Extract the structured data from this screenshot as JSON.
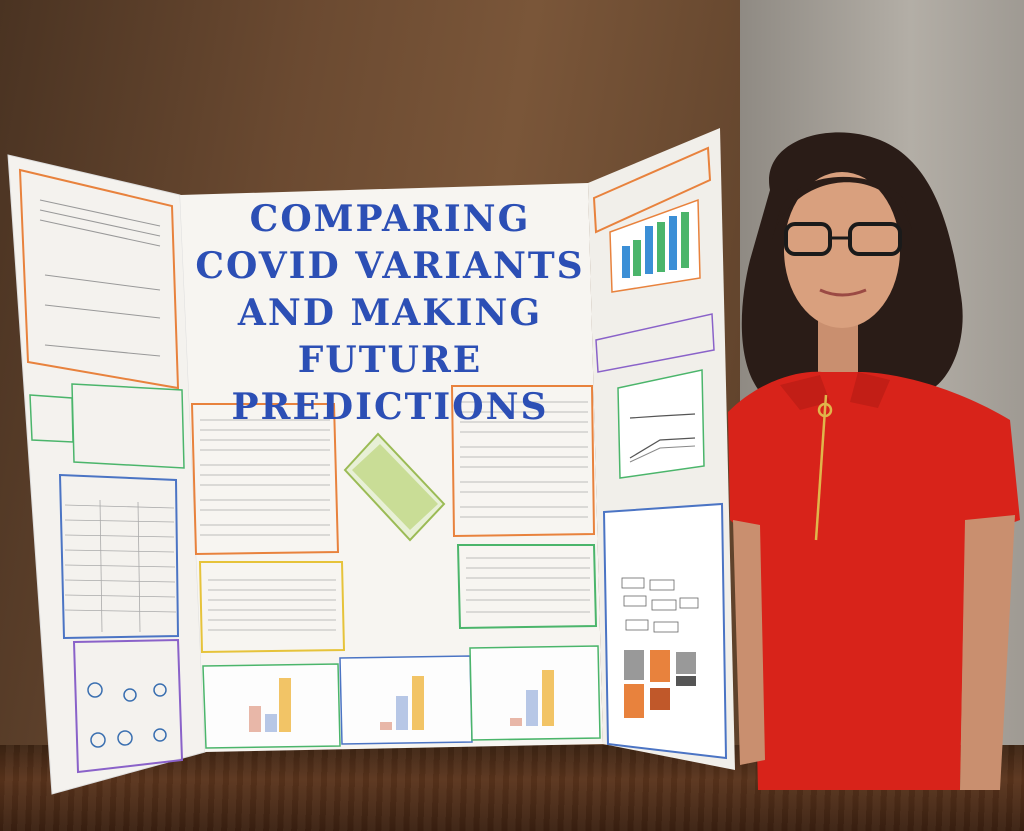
{
  "board": {
    "title": "COMPARING COVID VARIANTS AND MAKING FUTURE PREDICTIONS"
  },
  "colors": {
    "title": "#2c4fb5",
    "shirt": "#d8231a",
    "board": "#f4f2ee",
    "box_orange": "#e8823d",
    "box_blue": "#4b74c4",
    "box_green": "#4bb56b",
    "box_purple": "#8a62c9",
    "box_yellow": "#e6c33a"
  },
  "icons": [
    "sachet-icon"
  ]
}
